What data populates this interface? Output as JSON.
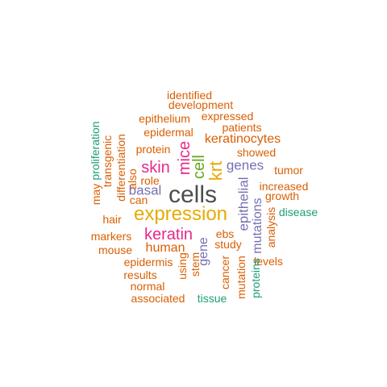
{
  "palette": {
    "gray": "#4d4d4d",
    "orange": "#d95f02",
    "purple": "#7570b3",
    "magenta": "#e7298a",
    "green": "#66a61e",
    "gold": "#e6ab02",
    "teal": "#1b9e77"
  },
  "words": [
    {
      "text": "identified",
      "color": "orange"
    },
    {
      "text": "development",
      "color": "orange"
    },
    {
      "text": "epithelium",
      "color": "orange"
    },
    {
      "text": "expressed",
      "color": "orange"
    },
    {
      "text": "patients",
      "color": "orange"
    },
    {
      "text": "epidermal",
      "color": "orange"
    },
    {
      "text": "keratinocytes",
      "color": "orange"
    },
    {
      "text": "protein",
      "color": "orange"
    },
    {
      "text": "showed",
      "color": "orange"
    },
    {
      "text": "genes",
      "color": "purple"
    },
    {
      "text": "skin",
      "color": "magenta"
    },
    {
      "text": "mice",
      "color": "magenta"
    },
    {
      "text": "cell",
      "color": "green"
    },
    {
      "text": "krt",
      "color": "gold"
    },
    {
      "text": "tumor",
      "color": "orange"
    },
    {
      "text": "role",
      "color": "orange"
    },
    {
      "text": "increased",
      "color": "orange"
    },
    {
      "text": "basal",
      "color": "purple"
    },
    {
      "text": "cells",
      "color": "gray"
    },
    {
      "text": "growth",
      "color": "orange"
    },
    {
      "text": "can",
      "color": "orange"
    },
    {
      "text": "expression",
      "color": "gold"
    },
    {
      "text": "disease",
      "color": "teal"
    },
    {
      "text": "hair",
      "color": "orange"
    },
    {
      "text": "keratin",
      "color": "magenta"
    },
    {
      "text": "ebs",
      "color": "orange"
    },
    {
      "text": "markers",
      "color": "orange"
    },
    {
      "text": "human",
      "color": "orange"
    },
    {
      "text": "study",
      "color": "orange"
    },
    {
      "text": "mouse",
      "color": "orange"
    },
    {
      "text": "levels",
      "color": "orange"
    },
    {
      "text": "epidermis",
      "color": "orange"
    },
    {
      "text": "results",
      "color": "orange"
    },
    {
      "text": "normal",
      "color": "orange"
    },
    {
      "text": "associated",
      "color": "orange"
    },
    {
      "text": "tissue",
      "color": "teal"
    },
    {
      "text": "proliferation",
      "color": "teal"
    },
    {
      "text": "transgenic",
      "color": "orange"
    },
    {
      "text": "may",
      "color": "orange"
    },
    {
      "text": "differentiation",
      "color": "orange"
    },
    {
      "text": "also",
      "color": "orange"
    },
    {
      "text": "epithelial",
      "color": "purple"
    },
    {
      "text": "mutations",
      "color": "purple"
    },
    {
      "text": "analysis",
      "color": "orange"
    },
    {
      "text": "gene",
      "color": "purple"
    },
    {
      "text": "using",
      "color": "orange"
    },
    {
      "text": "stem",
      "color": "orange"
    },
    {
      "text": "cancer",
      "color": "orange"
    },
    {
      "text": "mutation",
      "color": "orange"
    },
    {
      "text": "proteins",
      "color": "teal"
    }
  ]
}
